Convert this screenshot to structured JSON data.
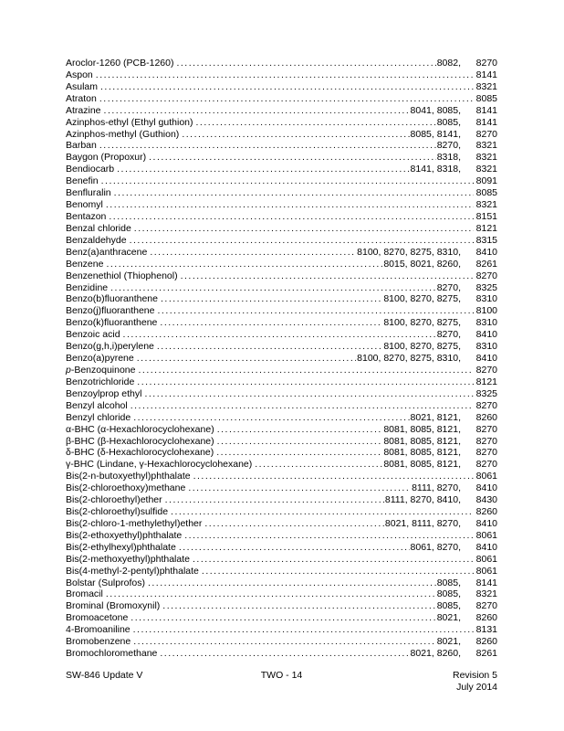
{
  "page": {
    "background_color": "#ffffff",
    "text_color": "#000000"
  },
  "index": {
    "entries": [
      {
        "name": "Aroclor-1260 (PCB-1260)",
        "methods": "8082,",
        "last": "8270"
      },
      {
        "name": "Aspon",
        "methods": "",
        "last": "8141"
      },
      {
        "name": "Asulam",
        "methods": "",
        "last": "8321"
      },
      {
        "name": "Atraton",
        "methods": "",
        "last": "8085"
      },
      {
        "name": "Atrazine",
        "methods": "8041, 8085,",
        "last": "8141"
      },
      {
        "name": "Azinphos-ethyl (Ethyl guthion)",
        "methods": "8085,",
        "last": "8141"
      },
      {
        "name": "Azinphos-methyl (Guthion)",
        "methods": "8085, 8141,",
        "last": "8270"
      },
      {
        "name": "Barban",
        "methods": "8270,",
        "last": "8321"
      },
      {
        "name": "Baygon (Propoxur)",
        "methods": "8318,",
        "last": "8321"
      },
      {
        "name": "Bendiocarb",
        "methods": "8141, 8318,",
        "last": "8321"
      },
      {
        "name": "Benefin",
        "methods": "",
        "last": "8091"
      },
      {
        "name": "Benfluralin",
        "methods": "",
        "last": "8085"
      },
      {
        "name": "Benomyl",
        "methods": "",
        "last": "8321"
      },
      {
        "name": "Bentazon",
        "methods": "",
        "last": "8151"
      },
      {
        "name": "Benzal chloride",
        "methods": "",
        "last": "8121"
      },
      {
        "name": "Benzaldehyde",
        "methods": "",
        "last": "8315"
      },
      {
        "name": "Benz(a)anthracene",
        "methods": "8100, 8270, 8275, 8310,",
        "last": "8410"
      },
      {
        "name": "Benzene",
        "methods": "8015, 8021, 8260,",
        "last": "8261"
      },
      {
        "name": "Benzenethiol (Thiophenol)",
        "methods": "",
        "last": "8270"
      },
      {
        "name": "Benzidine",
        "methods": "8270,",
        "last": "8325"
      },
      {
        "name": "Benzo(b)fluoranthene",
        "methods": "8100, 8270, 8275,",
        "last": "8310"
      },
      {
        "name": "Benzo(j)fluoranthene",
        "methods": "",
        "last": "8100"
      },
      {
        "name": "Benzo(k)fluoranthene",
        "methods": "8100, 8270, 8275,",
        "last": "8310"
      },
      {
        "name": "Benzoic acid",
        "methods": "8270,",
        "last": "8410"
      },
      {
        "name": "Benzo(g,h,i)perylene",
        "methods": "8100, 8270, 8275,",
        "last": "8310"
      },
      {
        "name": "Benzo(a)pyrene",
        "methods": "8100, 8270, 8275, 8310,",
        "last": "8410"
      },
      {
        "name": "p-Benzoquinone",
        "methods": "",
        "last": "8270",
        "italic_lead": true
      },
      {
        "name": "Benzotrichloride",
        "methods": "",
        "last": "8121"
      },
      {
        "name": "Benzoylprop ethyl",
        "methods": "",
        "last": "8325"
      },
      {
        "name": "Benzyl alcohol",
        "methods": "",
        "last": "8270"
      },
      {
        "name": "Benzyl chloride",
        "methods": "8021, 8121,",
        "last": "8260"
      },
      {
        "name": "α-BHC (α-Hexachlorocyclohexane)",
        "methods": "8081, 8085, 8121,",
        "last": "8270"
      },
      {
        "name": "β-BHC (β-Hexachlorocyclohexane)",
        "methods": "8081, 8085, 8121,",
        "last": "8270"
      },
      {
        "name": "δ-BHC (δ-Hexachlorocyclohexane)",
        "methods": "8081, 8085, 8121,",
        "last": "8270"
      },
      {
        "name": "γ-BHC (Lindane, γ-Hexachlorocyclohexane)",
        "methods": "8081, 8085, 8121,",
        "last": "8270"
      },
      {
        "name": "Bis(2-n-butoxyethyl)phthalate",
        "methods": "",
        "last": "8061"
      },
      {
        "name": "Bis(2-chloroethoxy)methane",
        "methods": "8111, 8270,",
        "last": "8410"
      },
      {
        "name": "Bis(2-chloroethyl)ether",
        "methods": "8111, 8270, 8410,",
        "last": "8430"
      },
      {
        "name": "Bis(2-chloroethyl)sulfide",
        "methods": "",
        "last": "8260"
      },
      {
        "name": "Bis(2-chloro-1-methylethyl)ether",
        "methods": "8021, 8111, 8270,",
        "last": "8410"
      },
      {
        "name": "Bis(2-ethoxyethyl)phthalate",
        "methods": "",
        "last": "8061"
      },
      {
        "name": "Bis(2-ethylhexyl)phthalate",
        "methods": "8061, 8270,",
        "last": "8410"
      },
      {
        "name": "Bis(2-methoxyethyl)phthalate",
        "methods": "",
        "last": "8061"
      },
      {
        "name": "Bis(4-methyl-2-pentyl)phthalate",
        "methods": "",
        "last": "8061"
      },
      {
        "name": "Bolstar (Sulprofos)",
        "methods": "8085,",
        "last": "8141"
      },
      {
        "name": "Bromacil",
        "methods": "8085,",
        "last": "8321"
      },
      {
        "name": "Brominal (Bromoxynil)",
        "methods": "8085,",
        "last": "8270"
      },
      {
        "name": "Bromoacetone",
        "methods": "8021,",
        "last": "8260"
      },
      {
        "name": "4-Bromoaniline",
        "methods": "",
        "last": "8131"
      },
      {
        "name": "Bromobenzene",
        "methods": "8021,",
        "last": "8260"
      },
      {
        "name": "Bromochloromethane",
        "methods": "8021, 8260,",
        "last": "8261"
      }
    ]
  },
  "footer": {
    "document": "SW-846 Update V",
    "page_number": "TWO - 14",
    "revision": "Revision 5",
    "date": "July 2014"
  }
}
